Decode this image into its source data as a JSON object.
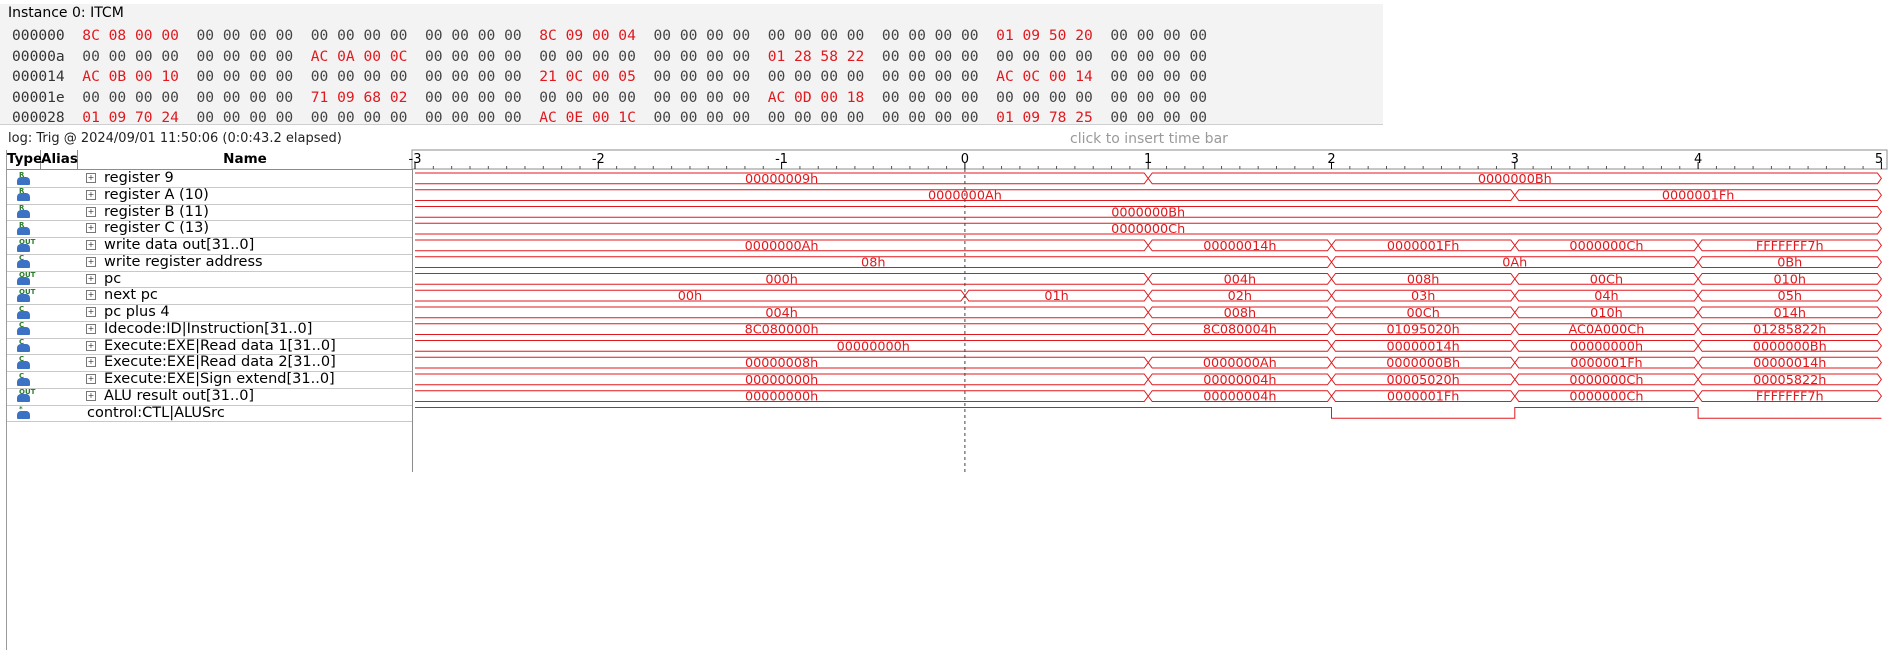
{
  "memory": {
    "title": "Instance 0: ITCM",
    "rows": [
      {
        "addr": "000000",
        "groups": [
          [
            "8C",
            "08",
            "00",
            "00"
          ],
          [
            "00",
            "00",
            "00",
            "00"
          ],
          [
            "00",
            "00",
            "00",
            "00"
          ],
          [
            "00",
            "00",
            "00",
            "00"
          ],
          [
            "8C",
            "09",
            "00",
            "04"
          ],
          [
            "00",
            "00",
            "00",
            "00"
          ],
          [
            "00",
            "00",
            "00",
            "00"
          ],
          [
            "00",
            "00",
            "00",
            "00"
          ],
          [
            "01",
            "09",
            "50",
            "20"
          ],
          [
            "00",
            "00",
            "00",
            "00"
          ]
        ],
        "red": [
          0,
          4,
          8
        ]
      },
      {
        "addr": "00000a",
        "groups": [
          [
            "00",
            "00",
            "00",
            "00"
          ],
          [
            "00",
            "00",
            "00",
            "00"
          ],
          [
            "AC",
            "0A",
            "00",
            "0C"
          ],
          [
            "00",
            "00",
            "00",
            "00"
          ],
          [
            "00",
            "00",
            "00",
            "00"
          ],
          [
            "00",
            "00",
            "00",
            "00"
          ],
          [
            "01",
            "28",
            "58",
            "22"
          ],
          [
            "00",
            "00",
            "00",
            "00"
          ],
          [
            "00",
            "00",
            "00",
            "00"
          ],
          [
            "00",
            "00",
            "00",
            "00"
          ]
        ],
        "red": [
          2,
          6
        ]
      },
      {
        "addr": "000014",
        "groups": [
          [
            "AC",
            "0B",
            "00",
            "10"
          ],
          [
            "00",
            "00",
            "00",
            "00"
          ],
          [
            "00",
            "00",
            "00",
            "00"
          ],
          [
            "00",
            "00",
            "00",
            "00"
          ],
          [
            "21",
            "0C",
            "00",
            "05"
          ],
          [
            "00",
            "00",
            "00",
            "00"
          ],
          [
            "00",
            "00",
            "00",
            "00"
          ],
          [
            "00",
            "00",
            "00",
            "00"
          ],
          [
            "AC",
            "0C",
            "00",
            "14"
          ],
          [
            "00",
            "00",
            "00",
            "00"
          ]
        ],
        "red": [
          0,
          4,
          8
        ]
      },
      {
        "addr": "00001e",
        "groups": [
          [
            "00",
            "00",
            "00",
            "00"
          ],
          [
            "00",
            "00",
            "00",
            "00"
          ],
          [
            "71",
            "09",
            "68",
            "02"
          ],
          [
            "00",
            "00",
            "00",
            "00"
          ],
          [
            "00",
            "00",
            "00",
            "00"
          ],
          [
            "00",
            "00",
            "00",
            "00"
          ],
          [
            "AC",
            "0D",
            "00",
            "18"
          ],
          [
            "00",
            "00",
            "00",
            "00"
          ],
          [
            "00",
            "00",
            "00",
            "00"
          ],
          [
            "00",
            "00",
            "00",
            "00"
          ]
        ],
        "red": [
          2,
          6
        ]
      },
      {
        "addr": "000028",
        "groups": [
          [
            "01",
            "09",
            "70",
            "24"
          ],
          [
            "00",
            "00",
            "00",
            "00"
          ],
          [
            "00",
            "00",
            "00",
            "00"
          ],
          [
            "00",
            "00",
            "00",
            "00"
          ],
          [
            "AC",
            "0E",
            "00",
            "1C"
          ],
          [
            "00",
            "00",
            "00",
            "00"
          ],
          [
            "00",
            "00",
            "00",
            "00"
          ],
          [
            "00",
            "00",
            "00",
            "00"
          ],
          [
            "01",
            "09",
            "78",
            "25"
          ],
          [
            "00",
            "00",
            "00",
            "00"
          ]
        ],
        "red": [
          0,
          4,
          8
        ]
      }
    ]
  },
  "log": {
    "info": "log: Trig @ 2024/09/01 11:50:06 (0:0:43.2 elapsed)",
    "timebar_hint": "click to insert time bar"
  },
  "headers": {
    "type": "Type",
    "alias": "Alias",
    "name": "Name"
  },
  "ruler": {
    "ticks": [
      "-3",
      "-2",
      "-1",
      "0",
      "1",
      "2",
      "3",
      "4",
      "5"
    ]
  },
  "colors": {
    "wave": "#e0191e",
    "trigger": "#444444",
    "icon_blue": "#3b72c4"
  },
  "signals": [
    {
      "name": "register 9",
      "icon": "R",
      "bus": true,
      "segments": [
        [
          "00000009h",
          -3,
          1
        ],
        [
          "0000000Bh",
          1,
          5
        ]
      ]
    },
    {
      "name": "register A (10)",
      "icon": "R",
      "bus": true,
      "segments": [
        [
          "0000000Ah",
          -3,
          3
        ],
        [
          "0000001Fh",
          3,
          5
        ]
      ]
    },
    {
      "name": "register B (11)",
      "icon": "R",
      "bus": true,
      "segments": [
        [
          "0000000Bh",
          -3,
          5
        ]
      ]
    },
    {
      "name": "register C (13)",
      "icon": "R",
      "bus": true,
      "segments": [
        [
          "0000000Ch",
          -3,
          5
        ]
      ]
    },
    {
      "name": "write data out[31..0]",
      "icon": "OUT",
      "bus": true,
      "segments": [
        [
          "0000000Ah",
          -3,
          1
        ],
        [
          "00000014h",
          1,
          2
        ],
        [
          "0000001Fh",
          2,
          3
        ],
        [
          "0000000Ch",
          3,
          4
        ],
        [
          "FFFFFFF7h",
          4,
          5
        ]
      ]
    },
    {
      "name": "write register address",
      "icon": "C",
      "bus": true,
      "segments": [
        [
          "08h",
          -3,
          2
        ],
        [
          "0Ah",
          2,
          4
        ],
        [
          "0Bh",
          4,
          5
        ]
      ]
    },
    {
      "name": "pc",
      "icon": "OUT",
      "bus": true,
      "segments": [
        [
          "000h",
          -3,
          1
        ],
        [
          "004h",
          1,
          2
        ],
        [
          "008h",
          2,
          3
        ],
        [
          "00Ch",
          3,
          4
        ],
        [
          "010h",
          4,
          5
        ]
      ]
    },
    {
      "name": "next pc",
      "icon": "OUT",
      "bus": true,
      "segments": [
        [
          "00h",
          -3,
          0
        ],
        [
          "01h",
          0,
          1
        ],
        [
          "02h",
          1,
          2
        ],
        [
          "03h",
          2,
          3
        ],
        [
          "04h",
          3,
          4
        ],
        [
          "05h",
          4,
          5
        ]
      ]
    },
    {
      "name": "pc plus 4",
      "icon": "C",
      "bus": true,
      "segments": [
        [
          "004h",
          -3,
          1
        ],
        [
          "008h",
          1,
          2
        ],
        [
          "00Ch",
          2,
          3
        ],
        [
          "010h",
          3,
          4
        ],
        [
          "014h",
          4,
          5
        ]
      ]
    },
    {
      "name": "Idecode:ID|Instruction[31..0]",
      "icon": "C",
      "bus": true,
      "segments": [
        [
          "8C080000h",
          -3,
          1
        ],
        [
          "8C080004h",
          1,
          2
        ],
        [
          "01095020h",
          2,
          3
        ],
        [
          "AC0A000Ch",
          3,
          4
        ],
        [
          "01285822h",
          4,
          5
        ]
      ]
    },
    {
      "name": "Execute:EXE|Read data 1[31..0]",
      "icon": "C",
      "bus": true,
      "segments": [
        [
          "00000000h",
          -3,
          2
        ],
        [
          "00000014h",
          2,
          3
        ],
        [
          "00000000h",
          3,
          4
        ],
        [
          "0000000Bh",
          4,
          5
        ]
      ]
    },
    {
      "name": "Execute:EXE|Read data 2[31..0]",
      "icon": "C",
      "bus": true,
      "segments": [
        [
          "00000008h",
          -3,
          1
        ],
        [
          "0000000Ah",
          1,
          2
        ],
        [
          "0000000Bh",
          2,
          3
        ],
        [
          "0000001Fh",
          3,
          4
        ],
        [
          "00000014h",
          4,
          5
        ]
      ]
    },
    {
      "name": "Execute:EXE|Sign extend[31..0]",
      "icon": "C",
      "bus": true,
      "segments": [
        [
          "00000000h",
          -3,
          1
        ],
        [
          "00000004h",
          1,
          2
        ],
        [
          "00005020h",
          2,
          3
        ],
        [
          "0000000Ch",
          3,
          4
        ],
        [
          "00005822h",
          4,
          5
        ]
      ]
    },
    {
      "name": "ALU result out[31..0]",
      "icon": "OUT",
      "bus": true,
      "segments": [
        [
          "00000000h",
          -3,
          1
        ],
        [
          "00000004h",
          1,
          2
        ],
        [
          "0000001Fh",
          2,
          3
        ],
        [
          "0000000Ch",
          3,
          4
        ],
        [
          "FFFFFFF7h",
          4,
          5
        ]
      ]
    },
    {
      "name": "control:CTL|ALUSrc",
      "icon": "*",
      "bus": false,
      "levels": [
        [
          1,
          -3,
          2
        ],
        [
          0,
          2,
          3
        ],
        [
          1,
          3,
          4
        ],
        [
          0,
          4,
          5
        ]
      ]
    }
  ]
}
